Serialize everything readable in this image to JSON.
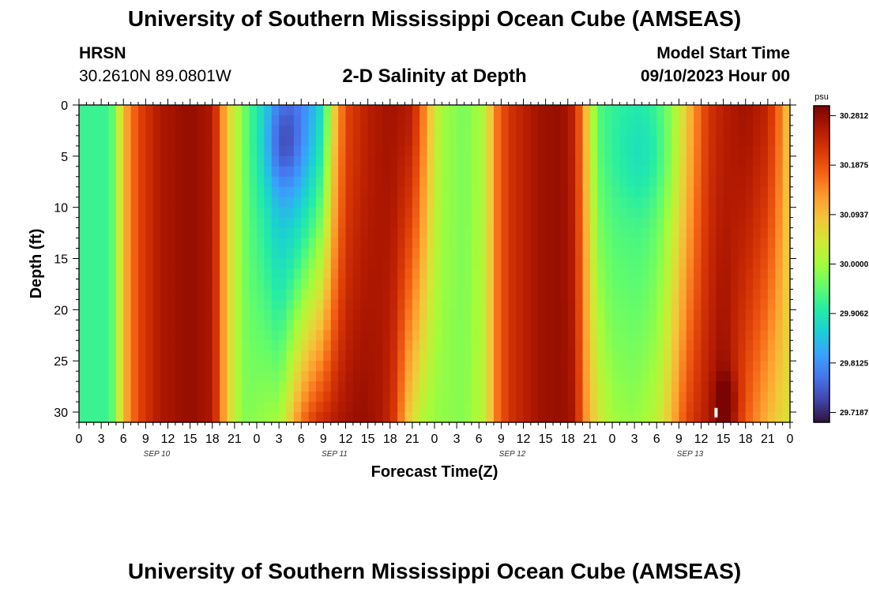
{
  "header": {
    "title": "University of Southern Mississippi Ocean Cube (AMSEAS)",
    "station": "HRSN",
    "coords": "30.2610N  89.0801W",
    "plot_title": "2-D Salinity at Depth",
    "model_start_label": "Model Start Time",
    "model_start_value": "09/10/2023 Hour 00"
  },
  "footer": {
    "title": "University of Southern Mississippi Ocean Cube (AMSEAS)"
  },
  "colors": {
    "colormap": [
      "#30123b",
      "#4145ab",
      "#4675ed",
      "#39a2fc",
      "#1bcfd4",
      "#24eca6",
      "#61fc6c",
      "#a4fc3b",
      "#d1e834",
      "#f3c63a",
      "#fe9b2d",
      "#f36315",
      "#d93806",
      "#b11901",
      "#7a0402"
    ]
  },
  "chart_data": {
    "type": "heatmap",
    "title": "2-D Salinity at Depth",
    "xlabel": "Forecast Time(Z)",
    "ylabel": "Depth (ft)",
    "x_tick_labels": [
      "0",
      "3",
      "6",
      "9",
      "12",
      "15",
      "18",
      "21",
      "0",
      "3",
      "6",
      "9",
      "12",
      "15",
      "18",
      "21",
      "0",
      "3",
      "6",
      "9",
      "12",
      "15",
      "18",
      "21",
      "0",
      "3",
      "6",
      "9",
      "12",
      "15",
      "18",
      "21",
      "0"
    ],
    "date_labels": [
      "SEP 10",
      "SEP 11",
      "SEP 12",
      "SEP 13"
    ],
    "y_ticks": [
      0,
      5,
      10,
      15,
      20,
      25,
      30
    ],
    "ylim": [
      0,
      31
    ],
    "xlim_hours": [
      0,
      96
    ],
    "colorbar_unit": "psu",
    "colorbar_ticks": [
      "30.2812",
      "30.1875",
      "30.0937",
      "30.0000",
      "29.9062",
      "29.8125",
      "29.7187"
    ],
    "colorbar_range": [
      29.7,
      30.3
    ],
    "surface_salinity_by_hour": [
      [
        0,
        29.93
      ],
      [
        4,
        29.93
      ],
      [
        5,
        29.98
      ],
      [
        6,
        30.1
      ],
      [
        8,
        30.2
      ],
      [
        11,
        30.26
      ],
      [
        15,
        30.28
      ],
      [
        18,
        30.26
      ],
      [
        19,
        30.18
      ],
      [
        20,
        30.08
      ],
      [
        22,
        29.98
      ],
      [
        23,
        29.94
      ],
      [
        25,
        29.89
      ],
      [
        27,
        29.82
      ],
      [
        29,
        29.8
      ],
      [
        31,
        29.83
      ],
      [
        33,
        29.9
      ],
      [
        34,
        30.04
      ],
      [
        36,
        30.2
      ],
      [
        39,
        30.25
      ],
      [
        42,
        30.27
      ],
      [
        45,
        30.25
      ],
      [
        47,
        30.12
      ],
      [
        48,
        30.04
      ],
      [
        49,
        30.0
      ],
      [
        52,
        29.97
      ],
      [
        55,
        30.02
      ],
      [
        56,
        30.14
      ],
      [
        58,
        30.22
      ],
      [
        62,
        30.27
      ],
      [
        65,
        30.28
      ],
      [
        67,
        30.24
      ],
      [
        68,
        30.14
      ],
      [
        69,
        30.05
      ],
      [
        70,
        29.95
      ],
      [
        72,
        29.93
      ],
      [
        76,
        29.92
      ],
      [
        78,
        29.94
      ],
      [
        80,
        29.99
      ],
      [
        82,
        30.08
      ],
      [
        84,
        30.18
      ],
      [
        85,
        30.22
      ],
      [
        87,
        30.25
      ],
      [
        90,
        30.27
      ],
      [
        93,
        30.24
      ],
      [
        95,
        30.14
      ],
      [
        96,
        30.06
      ]
    ],
    "bottom_salinity_by_hour": [
      [
        0,
        29.93
      ],
      [
        4,
        29.93
      ],
      [
        5,
        29.98
      ],
      [
        6,
        30.1
      ],
      [
        8,
        30.2
      ],
      [
        11,
        30.26
      ],
      [
        15,
        30.28
      ],
      [
        18,
        30.26
      ],
      [
        19,
        30.18
      ],
      [
        20,
        30.08
      ],
      [
        22,
        29.98
      ],
      [
        23,
        29.98
      ],
      [
        26,
        30.0
      ],
      [
        27,
        30.0
      ],
      [
        28,
        30.05
      ],
      [
        30,
        30.16
      ],
      [
        32,
        30.22
      ],
      [
        35,
        30.26
      ],
      [
        38,
        30.28
      ],
      [
        41,
        30.26
      ],
      [
        43,
        30.2
      ],
      [
        44,
        30.1
      ],
      [
        46,
        30.02
      ],
      [
        48,
        29.99
      ],
      [
        52,
        29.98
      ],
      [
        55,
        30.03
      ],
      [
        56,
        30.14
      ],
      [
        58,
        30.22
      ],
      [
        62,
        30.27
      ],
      [
        65,
        30.28
      ],
      [
        67,
        30.26
      ],
      [
        68,
        30.16
      ],
      [
        70,
        30.05
      ],
      [
        72,
        30.0
      ],
      [
        75,
        29.99
      ],
      [
        78,
        30.02
      ],
      [
        80,
        30.1
      ],
      [
        82,
        30.2
      ],
      [
        84,
        30.24
      ],
      [
        86,
        30.27
      ],
      [
        87,
        30.29
      ],
      [
        88,
        30.25
      ],
      [
        90,
        30.18
      ],
      [
        93,
        30.1
      ],
      [
        95,
        30.06
      ],
      [
        96,
        30.05
      ]
    ],
    "features": [
      {
        "name": "low-salinity core",
        "center_hour": 27.5,
        "center_depth_ft": 4,
        "min_psu": 29.78
      },
      {
        "name": "low-salinity patch",
        "center_hour": 76,
        "center_depth_ft": 5,
        "min_psu": 29.9
      },
      {
        "name": "high-salinity core",
        "center_hour": 87.5,
        "center_depth_ft": 29,
        "max_psu": 30.32
      }
    ]
  }
}
